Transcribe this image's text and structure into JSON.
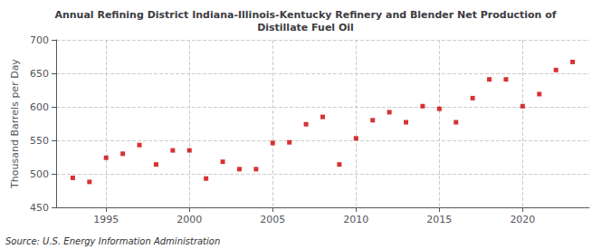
{
  "chart_data": {
    "type": "scatter",
    "title": "Annual Refining District Indiana-Illinois-Kentucky Refinery and Blender Net Production of\nDistillate Fuel Oil",
    "ylabel": "Thousand Barrels per Day",
    "annotation": "Source: U.S. Energy Information Administration",
    "x": [
      1993,
      1994,
      1995,
      1996,
      1997,
      1998,
      1999,
      2000,
      2001,
      2002,
      2003,
      2004,
      2005,
      2006,
      2007,
      2008,
      2009,
      2010,
      2011,
      2012,
      2013,
      2014,
      2015,
      2016,
      2017,
      2018,
      2019,
      2020,
      2021,
      2022,
      2023
    ],
    "values": [
      494,
      488,
      524,
      530,
      543,
      514,
      535,
      535,
      493,
      518,
      507,
      507,
      546,
      547,
      574,
      585,
      514,
      553,
      580,
      592,
      577,
      601,
      597,
      577,
      613,
      641,
      641,
      601,
      619,
      655,
      667
    ],
    "color": "#cc0000",
    "marker": "square",
    "xlim": [
      1992,
      2024
    ],
    "xticks": [
      1995,
      2000,
      2005,
      2010,
      2015,
      2020
    ],
    "ylim": [
      450,
      700
    ],
    "yticks": [
      450,
      500,
      550,
      600,
      650,
      700
    ],
    "grid": true
  }
}
